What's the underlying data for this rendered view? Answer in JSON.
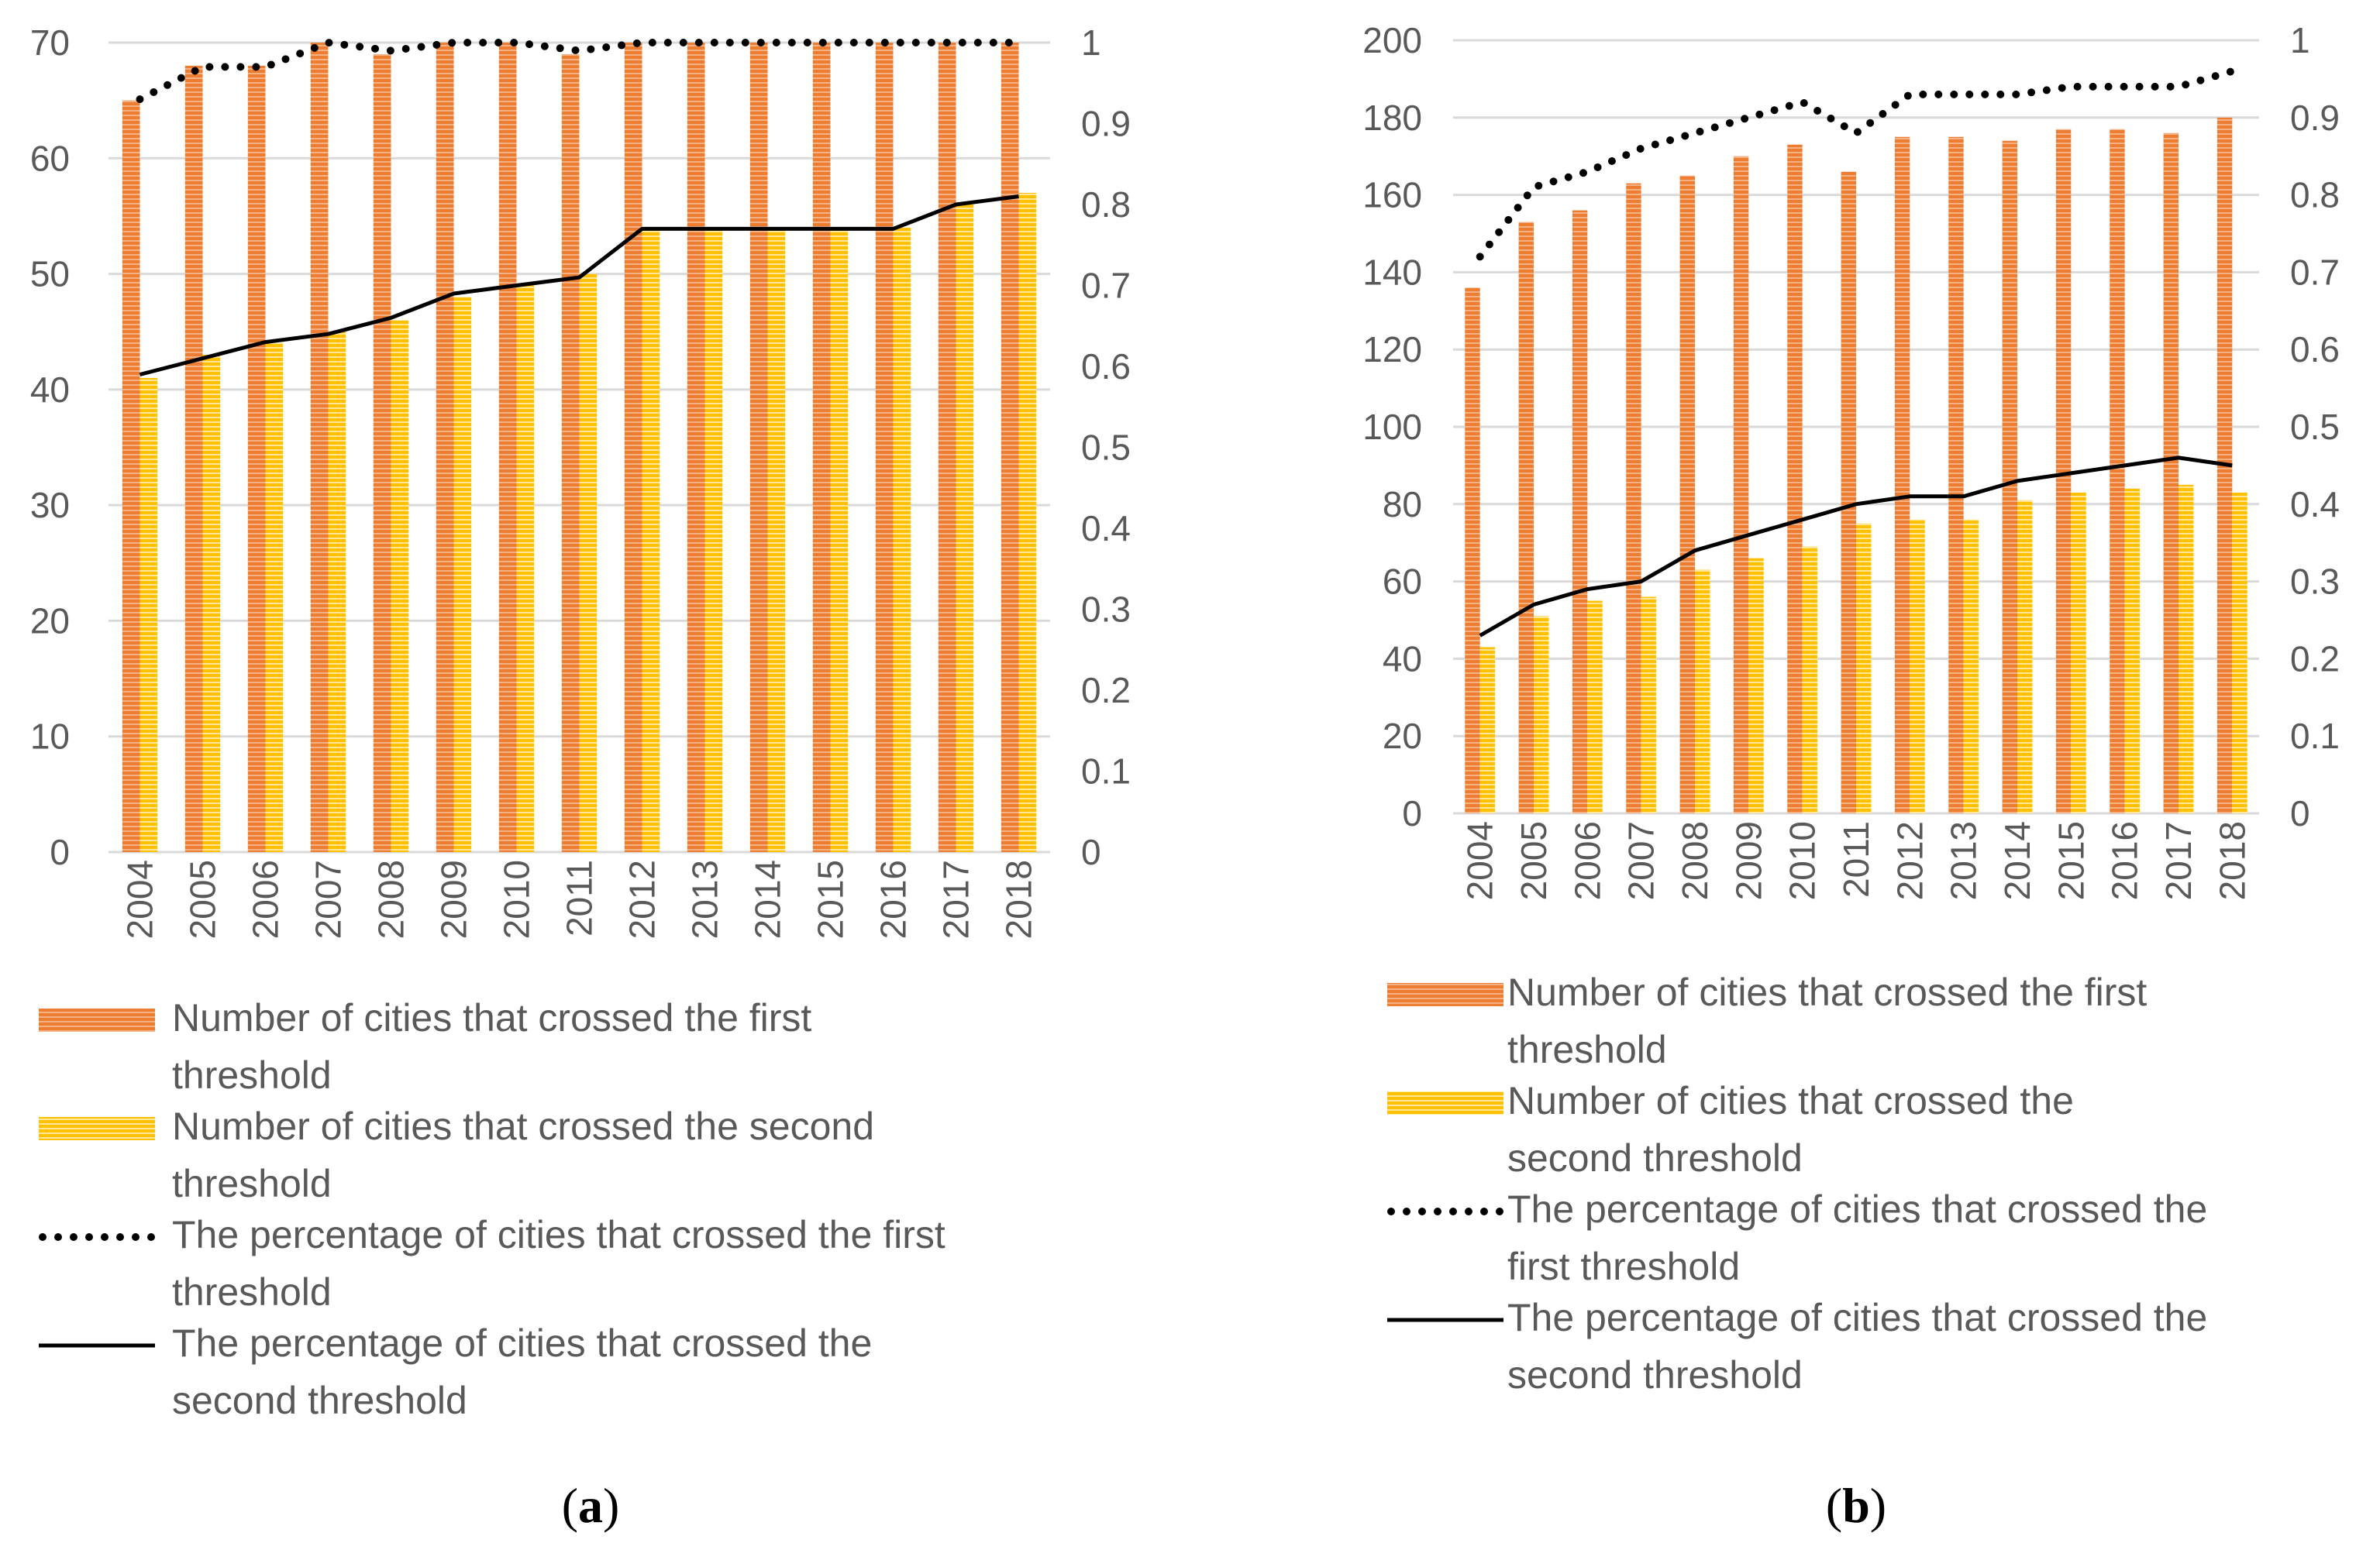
{
  "colors": {
    "first_bar": "#ED7D31",
    "first_bar_stripe": "#F4B183",
    "second_bar": "#FFC000",
    "second_bar_stripe": "#FFE699",
    "grid": "#D9D9D9",
    "axis_text": "#595959",
    "line": "#000000"
  },
  "legend_labels": {
    "first_bar": "Number of cities that crossed the first threshold",
    "second_bar": "Number of cities that crossed the second threshold",
    "first_pct": "The percentage of cities that crossed the first threshold",
    "second_pct": "The percentage of cities that crossed the second threshold"
  },
  "chart_data": [
    {
      "type": "bar",
      "caption_open": "(",
      "caption_letter": "a",
      "caption_close": ")",
      "categories": [
        "2004",
        "2005",
        "2006",
        "2007",
        "2008",
        "2009",
        "2010",
        "2011",
        "2012",
        "2013",
        "2014",
        "2015",
        "2016",
        "2017",
        "2018"
      ],
      "ylim": [
        0,
        70
      ],
      "y_ticks": [
        "0",
        "10",
        "20",
        "30",
        "40",
        "50",
        "60",
        "70"
      ],
      "y2lim": [
        0,
        1
      ],
      "y2_ticks": [
        "0",
        "0.1",
        "0.2",
        "0.3",
        "0.4",
        "0.5",
        "0.6",
        "0.7",
        "0.8",
        "0.9",
        "1"
      ],
      "grid": true,
      "legend_position": "bottom",
      "series": [
        {
          "name": "Number of cities that crossed the first threshold",
          "kind": "bar",
          "axis": "left",
          "values": [
            65,
            68,
            68,
            70,
            69,
            70,
            70,
            69,
            70,
            70,
            70,
            70,
            70,
            70,
            70
          ]
        },
        {
          "name": "Number of cities that crossed the second threshold",
          "kind": "bar",
          "axis": "left",
          "values": [
            41,
            43,
            44,
            45,
            46,
            48,
            49,
            50,
            54,
            54,
            54,
            54,
            54,
            56,
            57
          ]
        },
        {
          "name": "The percentage of cities that crossed the first threshold",
          "kind": "line-dotted",
          "axis": "right",
          "values": [
            0.93,
            0.97,
            0.97,
            1.0,
            0.99,
            1.0,
            1.0,
            0.99,
            1.0,
            1.0,
            1.0,
            1.0,
            1.0,
            1.0,
            1.0
          ]
        },
        {
          "name": "The percentage of cities that crossed the second threshold",
          "kind": "line-solid",
          "axis": "right",
          "values": [
            0.59,
            0.61,
            0.63,
            0.64,
            0.66,
            0.69,
            0.7,
            0.71,
            0.77,
            0.77,
            0.77,
            0.77,
            0.77,
            0.8,
            0.81
          ]
        }
      ]
    },
    {
      "type": "bar",
      "caption_open": "(",
      "caption_letter": "b",
      "caption_close": ")",
      "categories": [
        "2004",
        "2005",
        "2006",
        "2007",
        "2008",
        "2009",
        "2010",
        "2011",
        "2012",
        "2013",
        "2014",
        "2015",
        "2016",
        "2017",
        "2018"
      ],
      "ylim": [
        0,
        200
      ],
      "y_ticks": [
        "0",
        "20",
        "40",
        "60",
        "80",
        "100",
        "120",
        "140",
        "160",
        "180",
        "200"
      ],
      "y2lim": [
        0,
        1
      ],
      "y2_ticks": [
        "0",
        "0.1",
        "0.2",
        "0.3",
        "0.4",
        "0.5",
        "0.6",
        "0.7",
        "0.8",
        "0.9",
        "1"
      ],
      "grid": true,
      "legend_position": "bottom",
      "series": [
        {
          "name": "Number of cities that crossed the first threshold",
          "kind": "bar",
          "axis": "left",
          "values": [
            136,
            153,
            156,
            163,
            165,
            170,
            173,
            166,
            175,
            175,
            174,
            177,
            177,
            176,
            180
          ]
        },
        {
          "name": "Number of cities that crossed the second threshold",
          "kind": "bar",
          "axis": "left",
          "values": [
            43,
            51,
            55,
            56,
            63,
            66,
            69,
            75,
            76,
            76,
            81,
            83,
            84,
            85,
            83
          ]
        },
        {
          "name": "The percentage of cities that crossed the first threshold",
          "kind": "line-dotted",
          "axis": "right",
          "values": [
            0.72,
            0.81,
            0.83,
            0.86,
            0.88,
            0.9,
            0.92,
            0.88,
            0.93,
            0.93,
            0.93,
            0.94,
            0.94,
            0.94,
            0.96
          ]
        },
        {
          "name": "The percentage of cities that crossed the second threshold",
          "kind": "line-solid",
          "axis": "right",
          "values": [
            0.23,
            0.27,
            0.29,
            0.3,
            0.34,
            0.36,
            0.38,
            0.4,
            0.41,
            0.41,
            0.43,
            0.44,
            0.45,
            0.46,
            0.45
          ]
        }
      ]
    }
  ]
}
